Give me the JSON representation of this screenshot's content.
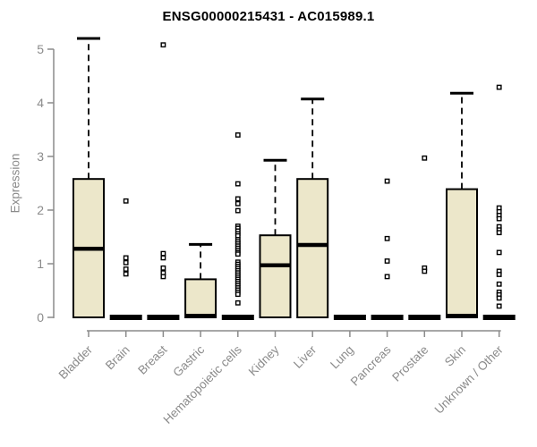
{
  "colors": {
    "background": "#FFFFFF",
    "box_fill": "#ECE7CA",
    "box_stroke": "#000000",
    "median": "#000000",
    "whisker": "#000000",
    "outlier_stroke": "#000000",
    "outlier_fill": "#FFFFFF",
    "axis": "#8B8B8B",
    "tick_label": "#8B8B8B",
    "title": "#000000"
  },
  "chart_data": {
    "type": "boxplot",
    "title": "ENSG00000215431 - AC015989.1",
    "xlabel": "",
    "ylabel": "Expression",
    "ylim": [
      0,
      5.3
    ],
    "yticks": [
      0,
      1,
      2,
      3,
      4,
      5
    ],
    "grid": false,
    "legend": "none",
    "categories": [
      "Bladder",
      "Brain",
      "Breast",
      "Gastric",
      "Hematopoietic cells",
      "Kidney",
      "Liver",
      "Lung",
      "Pancreas",
      "Prostate",
      "Skin",
      "Unknown / Other"
    ],
    "boxes": [
      {
        "label": "Bladder",
        "q1": 0,
        "median": 1.28,
        "q3": 2.58,
        "whisker_low": 0,
        "whisker_high": 5.2,
        "outliers": []
      },
      {
        "label": "Brain",
        "q1": 0,
        "median": 0,
        "q3": 0,
        "whisker_low": 0,
        "whisker_high": 0,
        "outliers": [
          2.17,
          1.11,
          1.02,
          0.9,
          0.81
        ]
      },
      {
        "label": "Breast",
        "q1": 0,
        "median": 0,
        "q3": 0,
        "whisker_low": 0,
        "whisker_high": 0,
        "outliers": [
          5.08,
          1.19,
          1.11,
          0.92,
          0.83,
          0.76
        ]
      },
      {
        "label": "Gastric",
        "q1": 0,
        "median": 0.03,
        "q3": 0.71,
        "whisker_low": 0,
        "whisker_high": 1.36,
        "outliers": []
      },
      {
        "label": "Hematopoietic cells",
        "q1": 0,
        "median": 0,
        "q3": 0,
        "whisker_low": 0,
        "whisker_high": 0,
        "outliers": [
          3.4,
          2.49,
          2.21,
          2.12,
          1.99,
          1.7,
          1.66,
          1.61,
          1.56,
          1.52,
          1.45,
          1.41,
          1.37,
          1.33,
          1.29,
          1.25,
          1.21,
          1.18,
          1.03,
          0.99,
          0.95,
          0.91,
          0.87,
          0.83,
          0.79,
          0.75,
          0.71,
          0.67,
          0.63,
          0.59,
          0.55,
          0.51,
          0.47,
          0.43,
          0.27
        ]
      },
      {
        "label": "Kidney",
        "q1": 0,
        "median": 0.97,
        "q3": 1.53,
        "whisker_low": 0,
        "whisker_high": 2.93,
        "outliers": []
      },
      {
        "label": "Liver",
        "q1": 0,
        "median": 1.35,
        "q3": 2.58,
        "whisker_low": 0,
        "whisker_high": 4.07,
        "outliers": []
      },
      {
        "label": "Lung",
        "q1": 0,
        "median": 0,
        "q3": 0,
        "whisker_low": 0,
        "whisker_high": 0,
        "outliers": []
      },
      {
        "label": "Pancreas",
        "q1": 0,
        "median": 0,
        "q3": 0,
        "whisker_low": 0,
        "whisker_high": 0,
        "outliers": [
          2.54,
          1.47,
          1.05,
          0.76
        ]
      },
      {
        "label": "Prostate",
        "q1": 0,
        "median": 0,
        "q3": 0,
        "whisker_low": 0,
        "whisker_high": 0,
        "outliers": [
          2.97,
          0.92,
          0.86
        ]
      },
      {
        "label": "Skin",
        "q1": 0,
        "median": 0.03,
        "q3": 2.39,
        "whisker_low": 0,
        "whisker_high": 4.18,
        "outliers": []
      },
      {
        "label": "Unknown / Other",
        "q1": 0,
        "median": 0,
        "q3": 0,
        "whisker_low": 0,
        "whisker_high": 0,
        "outliers": [
          4.29,
          2.04,
          1.97,
          1.9,
          1.84,
          1.69,
          1.63,
          1.58,
          1.21,
          0.86,
          0.8,
          0.62,
          0.47,
          0.42,
          0.36,
          0.21
        ]
      }
    ]
  }
}
